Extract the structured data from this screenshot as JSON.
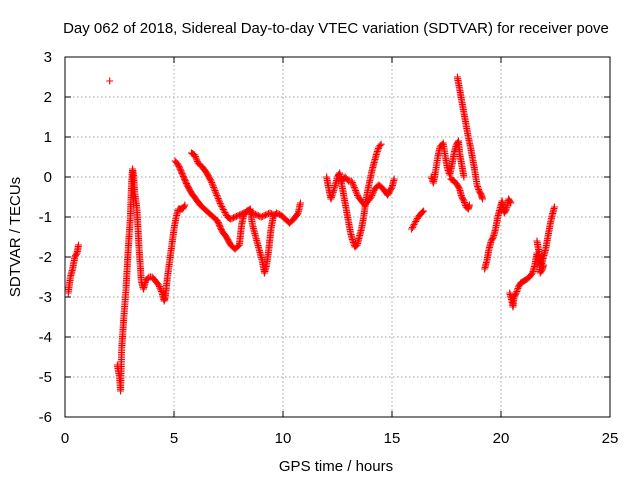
{
  "chart_data": {
    "type": "scatter",
    "title": "Day 062 of 2018, Sidereal Day-to-day VTEC variation (SDTVAR) for receiver pove",
    "xlabel": "GPS time / hours",
    "ylabel": "SDTVAR / TECUs",
    "xlim": [
      0,
      25
    ],
    "ylim": [
      -6,
      3
    ],
    "xticks": [
      0,
      5,
      10,
      15,
      20,
      25
    ],
    "yticks": [
      -6,
      -5,
      -4,
      -3,
      -2,
      -1,
      0,
      1,
      2,
      3
    ],
    "grid": true,
    "marker": "+",
    "color": "#ff0000",
    "series": [
      {
        "name": "SDTVAR",
        "segments": [
          [
            [
              0.15,
              -2.9
            ],
            [
              0.25,
              -2.5
            ],
            [
              0.35,
              -2.3
            ],
            [
              0.45,
              -2.0
            ],
            [
              0.55,
              -1.9
            ],
            [
              0.62,
              -1.7
            ]
          ],
          [
            [
              2.05,
              2.4
            ]
          ],
          [
            [
              2.4,
              -4.7
            ],
            [
              2.5,
              -5.0
            ],
            [
              2.55,
              -5.35
            ],
            [
              2.6,
              -4.3
            ],
            [
              2.7,
              -3.5
            ],
            [
              2.8,
              -2.8
            ],
            [
              2.9,
              -1.8
            ],
            [
              3.0,
              -1.0
            ],
            [
              3.05,
              -0.2
            ],
            [
              3.1,
              0.2
            ],
            [
              3.15,
              0.0
            ],
            [
              3.2,
              -0.4
            ],
            [
              3.3,
              -0.8
            ],
            [
              3.4,
              -1.8
            ],
            [
              3.5,
              -2.6
            ],
            [
              3.6,
              -2.8
            ],
            [
              3.7,
              -2.6
            ],
            [
              3.85,
              -2.5
            ],
            [
              4.0,
              -2.5
            ],
            [
              4.15,
              -2.6
            ],
            [
              4.3,
              -2.7
            ],
            [
              4.45,
              -2.9
            ],
            [
              4.55,
              -3.1
            ],
            [
              4.6,
              -3.0
            ],
            [
              4.7,
              -2.5
            ],
            [
              4.8,
              -2.1
            ],
            [
              4.9,
              -1.7
            ],
            [
              5.0,
              -1.3
            ],
            [
              5.1,
              -1.0
            ],
            [
              5.2,
              -0.8
            ],
            [
              5.3,
              -0.8
            ],
            [
              5.4,
              -0.8
            ],
            [
              5.5,
              -0.7
            ]
          ],
          [
            [
              5.05,
              0.4
            ],
            [
              5.2,
              0.3
            ],
            [
              5.4,
              0.05
            ],
            [
              5.6,
              -0.2
            ],
            [
              5.8,
              -0.4
            ],
            [
              6.0,
              -0.55
            ],
            [
              6.2,
              -0.7
            ],
            [
              6.4,
              -0.8
            ],
            [
              6.6,
              -0.9
            ],
            [
              6.8,
              -1.0
            ],
            [
              7.0,
              -1.1
            ],
            [
              7.2,
              -1.35
            ],
            [
              7.4,
              -1.5
            ],
            [
              7.6,
              -1.7
            ],
            [
              7.8,
              -1.8
            ],
            [
              8.0,
              -1.7
            ],
            [
              8.1,
              -1.2
            ],
            [
              8.2,
              -0.95
            ],
            [
              8.35,
              -0.85
            ],
            [
              8.5,
              -0.8
            ],
            [
              8.6,
              -1.2
            ],
            [
              8.75,
              -1.5
            ],
            [
              8.9,
              -1.8
            ],
            [
              9.05,
              -2.1
            ],
            [
              9.15,
              -2.4
            ],
            [
              9.25,
              -2.2
            ],
            [
              9.35,
              -1.8
            ],
            [
              9.45,
              -1.3
            ],
            [
              9.55,
              -1.0
            ],
            [
              9.7,
              -0.9
            ],
            [
              9.9,
              -0.95
            ],
            [
              10.1,
              -1.05
            ],
            [
              10.3,
              -1.15
            ],
            [
              10.5,
              -1.05
            ],
            [
              10.7,
              -0.9
            ],
            [
              10.8,
              -0.65
            ]
          ],
          [
            [
              5.8,
              0.6
            ],
            [
              5.95,
              0.55
            ],
            [
              6.1,
              0.35
            ],
            [
              6.3,
              0.25
            ],
            [
              6.5,
              0.1
            ],
            [
              6.7,
              -0.1
            ],
            [
              6.85,
              -0.3
            ],
            [
              7.0,
              -0.5
            ],
            [
              7.15,
              -0.7
            ],
            [
              7.3,
              -0.85
            ],
            [
              7.45,
              -1.0
            ],
            [
              7.6,
              -1.05
            ],
            [
              7.8,
              -1.0
            ],
            [
              8.0,
              -0.95
            ],
            [
              8.2,
              -0.9
            ],
            [
              8.4,
              -0.85
            ],
            [
              8.6,
              -0.9
            ],
            [
              8.8,
              -0.95
            ],
            [
              9.0,
              -1.0
            ],
            [
              9.2,
              -0.95
            ],
            [
              9.4,
              -0.9
            ],
            [
              9.6,
              -0.95
            ]
          ],
          [
            [
              12.0,
              0.0
            ],
            [
              12.1,
              -0.3
            ],
            [
              12.2,
              -0.55
            ],
            [
              12.35,
              -0.3
            ],
            [
              12.5,
              0.0
            ],
            [
              12.6,
              0.1
            ],
            [
              12.7,
              -0.2
            ],
            [
              12.8,
              -0.5
            ],
            [
              12.9,
              -0.8
            ],
            [
              13.0,
              -1.1
            ],
            [
              13.1,
              -1.4
            ],
            [
              13.2,
              -1.6
            ],
            [
              13.3,
              -1.75
            ],
            [
              13.4,
              -1.7
            ],
            [
              13.5,
              -1.5
            ],
            [
              13.6,
              -1.3
            ],
            [
              13.7,
              -1.0
            ],
            [
              13.8,
              -0.6
            ],
            [
              13.9,
              -0.3
            ],
            [
              14.0,
              -0.05
            ],
            [
              14.1,
              0.2
            ],
            [
              14.2,
              0.4
            ],
            [
              14.3,
              0.6
            ],
            [
              14.4,
              0.75
            ],
            [
              14.5,
              0.82
            ]
          ],
          [
            [
              12.55,
              0.05
            ],
            [
              12.7,
              -0.1
            ],
            [
              12.85,
              0.0
            ],
            [
              13.0,
              -0.1
            ],
            [
              13.15,
              -0.1
            ],
            [
              13.3,
              -0.3
            ],
            [
              13.45,
              -0.5
            ],
            [
              13.6,
              -0.6
            ],
            [
              13.75,
              -0.7
            ],
            [
              13.9,
              -0.6
            ],
            [
              14.05,
              -0.5
            ],
            [
              14.2,
              -0.3
            ],
            [
              14.4,
              -0.2
            ],
            [
              14.6,
              -0.3
            ],
            [
              14.8,
              -0.45
            ],
            [
              15.0,
              -0.25
            ],
            [
              15.1,
              -0.05
            ]
          ],
          [
            [
              15.9,
              -1.3
            ],
            [
              16.05,
              -1.15
            ],
            [
              16.2,
              -1.0
            ],
            [
              16.35,
              -0.9
            ],
            [
              16.45,
              -0.85
            ]
          ],
          [
            [
              16.8,
              0.0
            ],
            [
              16.9,
              -0.15
            ],
            [
              17.0,
              0.15
            ],
            [
              17.1,
              0.5
            ],
            [
              17.2,
              0.75
            ],
            [
              17.35,
              0.85
            ],
            [
              17.45,
              0.5
            ],
            [
              17.55,
              0.2
            ],
            [
              17.65,
              0.05
            ],
            [
              17.75,
              0.3
            ],
            [
              17.85,
              0.6
            ],
            [
              17.95,
              0.8
            ],
            [
              18.05,
              0.9
            ],
            [
              18.1,
              0.6
            ],
            [
              18.2,
              0.3
            ],
            [
              18.3,
              0.0
            ]
          ],
          [
            [
              17.7,
              -0.05
            ],
            [
              17.85,
              -0.1
            ],
            [
              18.0,
              -0.2
            ],
            [
              18.1,
              -0.3
            ],
            [
              18.2,
              -0.5
            ],
            [
              18.3,
              -0.6
            ],
            [
              18.4,
              -0.75
            ],
            [
              18.5,
              -0.8
            ],
            [
              18.55,
              -0.7
            ]
          ],
          [
            [
              18.0,
              2.5
            ],
            [
              18.1,
              2.2
            ],
            [
              18.2,
              1.9
            ],
            [
              18.3,
              1.6
            ],
            [
              18.4,
              1.3
            ],
            [
              18.5,
              1.0
            ],
            [
              18.6,
              0.75
            ],
            [
              18.7,
              0.45
            ],
            [
              18.8,
              0.15
            ],
            [
              18.9,
              -0.2
            ],
            [
              19.0,
              -0.35
            ],
            [
              19.1,
              -0.45
            ],
            [
              19.15,
              -0.55
            ]
          ],
          [
            [
              19.25,
              -2.3
            ],
            [
              19.35,
              -2.1
            ],
            [
              19.45,
              -1.8
            ],
            [
              19.55,
              -1.6
            ],
            [
              19.65,
              -1.5
            ],
            [
              19.75,
              -1.3
            ],
            [
              19.85,
              -1.0
            ],
            [
              19.95,
              -0.8
            ],
            [
              20.05,
              -0.6
            ],
            [
              20.15,
              -0.9
            ],
            [
              20.25,
              -0.8
            ],
            [
              20.35,
              -0.55
            ],
            [
              20.45,
              -0.65
            ]
          ],
          [
            [
              20.4,
              -2.9
            ],
            [
              20.5,
              -3.1
            ],
            [
              20.55,
              -3.25
            ],
            [
              20.6,
              -3.0
            ],
            [
              20.7,
              -2.9
            ],
            [
              20.8,
              -2.75
            ],
            [
              20.9,
              -2.65
            ],
            [
              21.05,
              -2.6
            ],
            [
              21.2,
              -2.55
            ],
            [
              21.3,
              -2.5
            ],
            [
              21.45,
              -2.4
            ],
            [
              21.55,
              -2.2
            ],
            [
              21.65,
              -1.9
            ],
            [
              21.75,
              -2.1
            ],
            [
              21.8,
              -2.4
            ],
            [
              21.9,
              -2.3
            ],
            [
              21.95,
              -2.2
            ]
          ],
          [
            [
              21.65,
              -1.6
            ],
            [
              21.75,
              -1.9
            ],
            [
              21.85,
              -2.2
            ],
            [
              21.95,
              -2.0
            ],
            [
              22.05,
              -1.8
            ],
            [
              22.15,
              -1.5
            ],
            [
              22.25,
              -1.2
            ],
            [
              22.35,
              -0.95
            ],
            [
              22.45,
              -0.75
            ]
          ]
        ]
      }
    ]
  }
}
